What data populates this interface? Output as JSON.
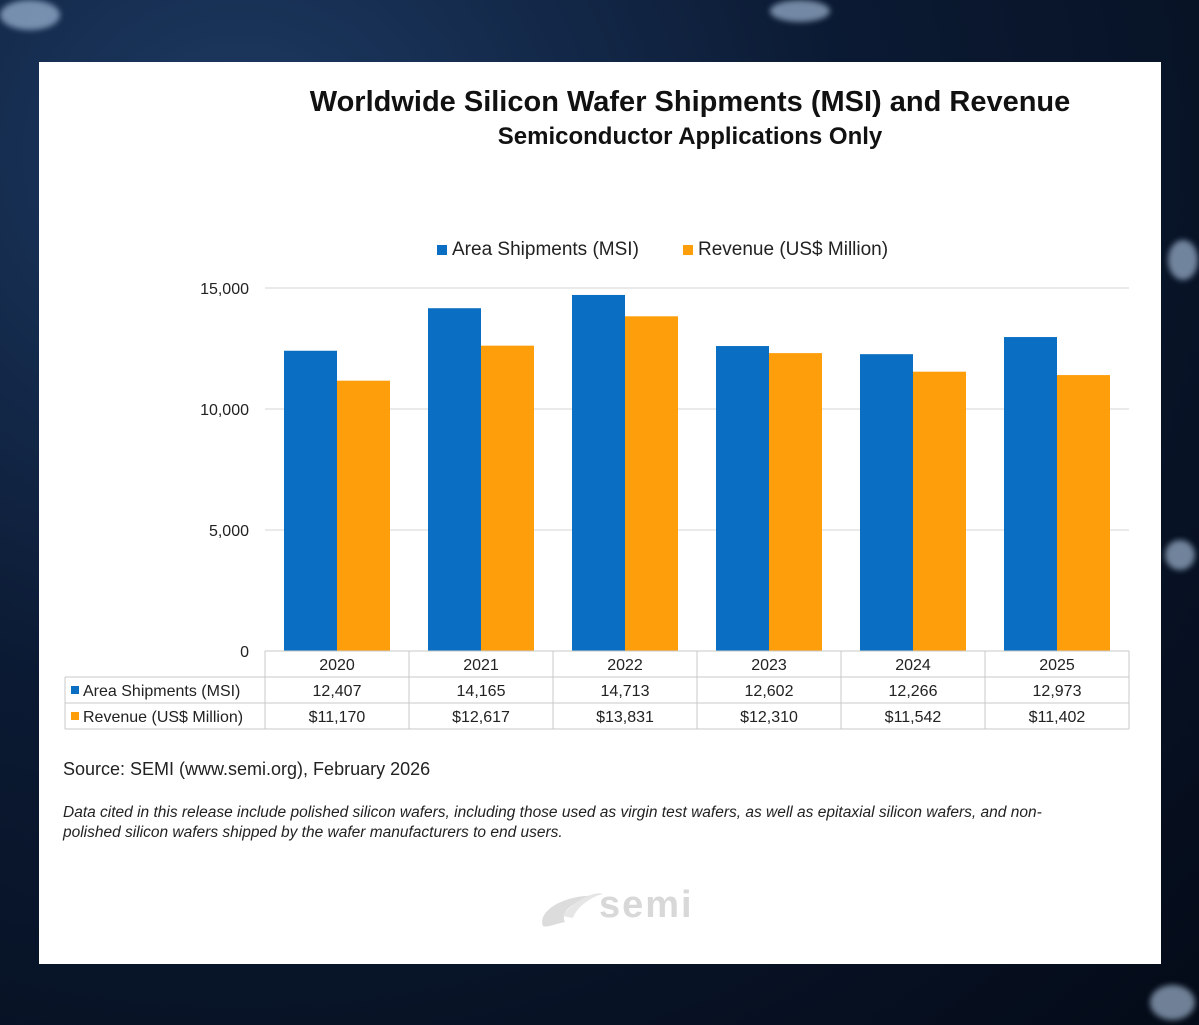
{
  "chart_data": {
    "type": "bar",
    "title": "Worldwide Silicon Wafer Shipments (MSI) and Revenue",
    "subtitle": "Semiconductor Applications Only",
    "categories": [
      "2020",
      "2021",
      "2022",
      "2023",
      "2024",
      "2025"
    ],
    "series": [
      {
        "name": "Area Shipments (MSI)",
        "color": "#0a6fc2",
        "values": [
          12407,
          14165,
          14713,
          12602,
          12266,
          12973
        ],
        "table_values": [
          "12,407",
          "14,165",
          "14,713",
          "12,602",
          "12,266",
          "12,973"
        ]
      },
      {
        "name": "Revenue (US$ Million)",
        "color": "#ff9e0b",
        "values": [
          11170,
          12617,
          13831,
          12310,
          11542,
          11402
        ],
        "table_values": [
          "$11,170",
          "$12,617",
          "$13,831",
          "$12,310",
          "$11,542",
          "$11,402"
        ]
      }
    ],
    "ylim": [
      0,
      15000
    ],
    "yticks": [
      0,
      5000,
      10000,
      15000
    ],
    "ytick_labels": [
      "0",
      "5,000",
      "10,000",
      "15,000"
    ],
    "grid": true,
    "legend_position": "top-center",
    "xlabel": "",
    "ylabel": ""
  },
  "source": "Source: SEMI (www.semi.org), February 2026",
  "note": "Data cited in this release include polished silicon wafers, including those used as virgin test wafers, as well as epitaxial silicon wafers, and non-polished silicon wafers shipped by the wafer manufacturers to end users.",
  "logo": {
    "text": "semi"
  }
}
